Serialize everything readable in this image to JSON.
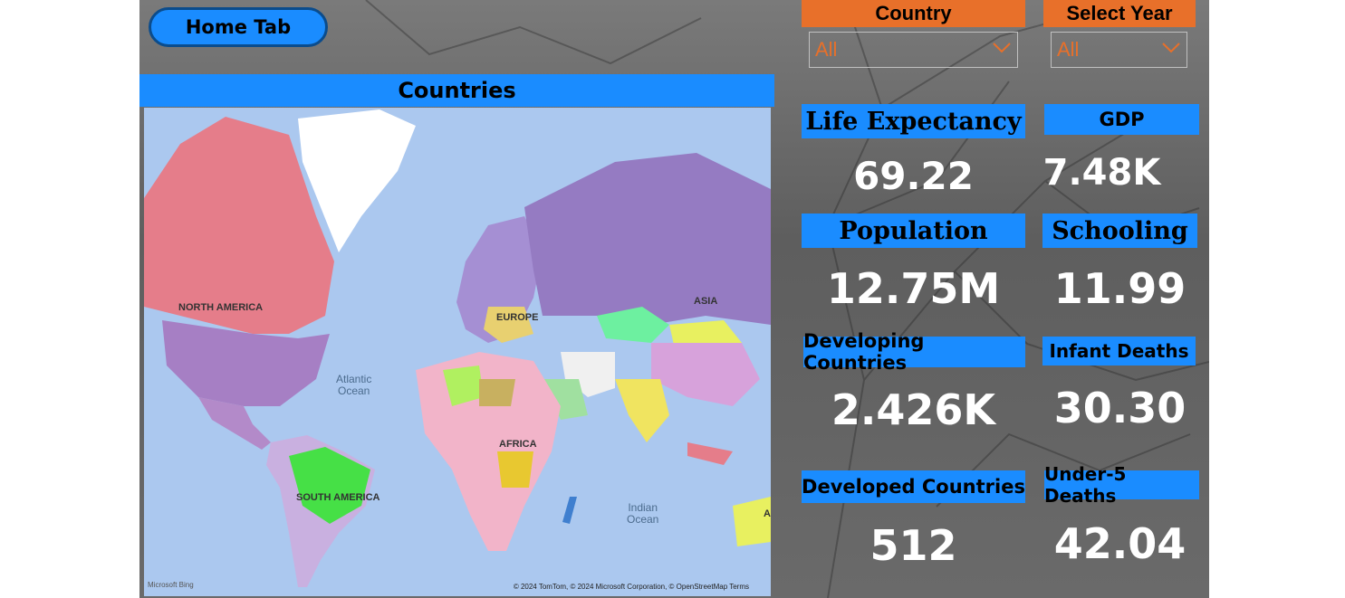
{
  "nav": {
    "home_label": "Home Tab"
  },
  "map": {
    "title": "Countries",
    "labels": {
      "north_america": "NORTH AMERICA",
      "south_america": "SOUTH AMERICA",
      "europe": "EUROPE",
      "asia": "ASIA",
      "africa": "AFRICA",
      "australia_partial": "A"
    },
    "oceans": {
      "atlantic": "Atlantic\nOcean",
      "indian": "Indian\nOcean"
    },
    "attribution": "© 2024 TomTom, © 2024 Microsoft Corporation, © OpenStreetMap  Terms",
    "provider": "Microsoft Bing"
  },
  "filters": {
    "country": {
      "label": "Country",
      "value": "All"
    },
    "year": {
      "label": "Select Year",
      "value": "All"
    }
  },
  "kpis": {
    "life_expectancy": {
      "label": "Life Expectancy",
      "value": "69.22"
    },
    "gdp": {
      "label": "GDP",
      "value": "7.48K"
    },
    "population": {
      "label": "Population",
      "value": "12.75M"
    },
    "schooling": {
      "label": "Schooling",
      "value": "11.99"
    },
    "developing": {
      "label": "Developing Countries",
      "value": "2.426K"
    },
    "infant_deaths": {
      "label": "Infant Deaths",
      "value": "30.30"
    },
    "developed": {
      "label": "Developed Countries",
      "value": "512"
    },
    "under5_deaths": {
      "label": "Under-5 Deaths",
      "value": "42.04"
    }
  },
  "colors": {
    "accent_blue": "#1a8cff",
    "accent_orange": "#e8702a",
    "ocean": "#abc8ef"
  }
}
